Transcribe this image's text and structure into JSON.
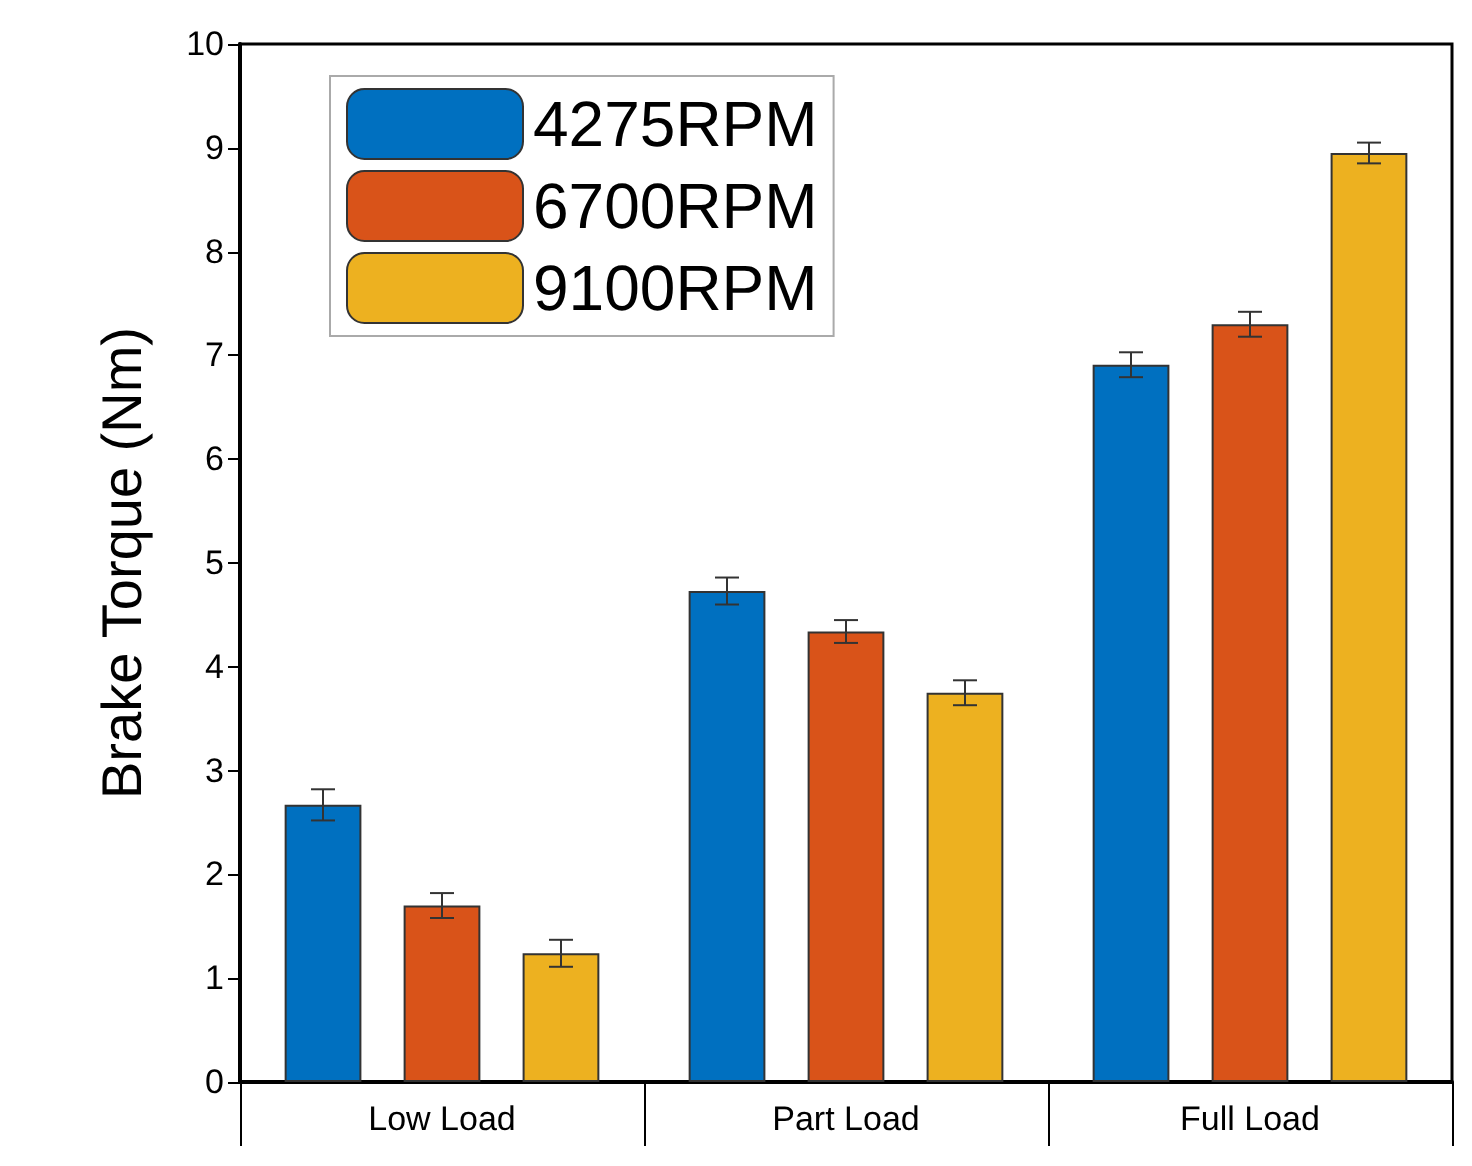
{
  "chart_data": {
    "type": "bar",
    "ylabel": "Brake Torque (Nm)",
    "categories": [
      "Low Load",
      "Part Load",
      "Full Load"
    ],
    "series": [
      {
        "name": "4275RPM",
        "color": "#0070c0",
        "values": [
          2.67,
          4.73,
          6.91
        ],
        "errors": [
          0.15,
          0.13,
          0.12
        ]
      },
      {
        "name": "6700RPM",
        "color": "#d95319",
        "values": [
          1.7,
          4.34,
          7.3
        ],
        "errors": [
          0.12,
          0.11,
          0.12
        ]
      },
      {
        "name": "9100RPM",
        "color": "#edb120",
        "values": [
          1.24,
          3.75,
          8.95
        ],
        "errors": [
          0.13,
          0.12,
          0.1
        ]
      }
    ],
    "ylim": [
      0,
      10
    ],
    "yticks": [
      0,
      1,
      2,
      3,
      4,
      5,
      6,
      7,
      8,
      9,
      10
    ],
    "grid": false,
    "legend": "top left"
  }
}
